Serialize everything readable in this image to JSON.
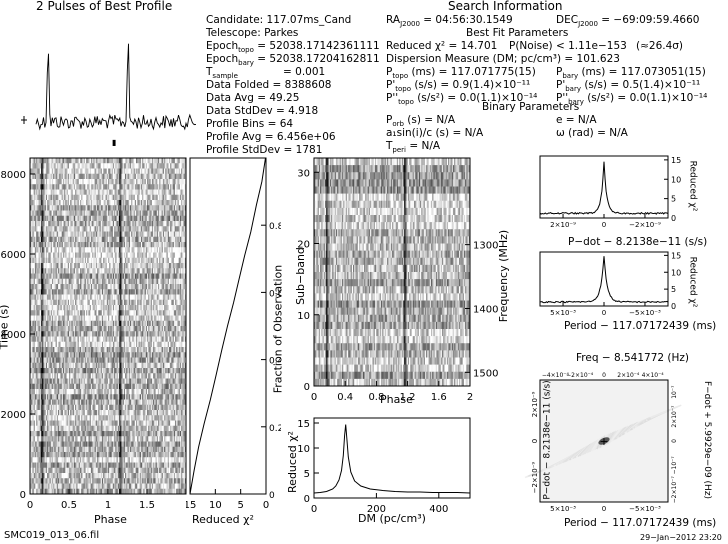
{
  "profile_title": "2 Pulses of Best Profile",
  "info": {
    "candidate": "Candidate:  117.07ms_Cand",
    "telescope": "Telescope:  Parkes",
    "epoch_topo_label": "Epoch",
    "epoch_topo_sub": "topo",
    "epoch_topo_val": " = 52038.17142361111",
    "epoch_bary_label": "Epoch",
    "epoch_bary_sub": "bary",
    "epoch_bary_val": " = 52038.17204162811",
    "tsample_label": "T",
    "tsample_sub": "sample",
    "tsample_val": "= 0.001",
    "data_folded": "Data Folded       = 8388608",
    "data_avg": "Data Avg           = 49.25",
    "data_stddev": "Data StdDev       = 4.918",
    "profile_bins": "Profile Bins       = 64",
    "profile_avg": "Profile Avg        = 6.456e+06",
    "profile_stddev": "Profile StdDev    = 1781"
  },
  "search": {
    "title": "Search Information",
    "ra": "RA",
    "ra_sub": "J2000",
    "ra_val": " = 04:56:30.1549",
    "dec": "DEC",
    "dec_sub": "J2000",
    "dec_val": " = −69:09:59.4660",
    "best_fit": "Best Fit Parameters",
    "reduced_chi": "Reduced χ² = 14.701",
    "pnoise": "P(Noise) < 1.11e−153",
    "sigma": "(≈26.4σ)",
    "dm": "Dispersion Measure (DM; pc/cm³) = 101.623",
    "p_topo": "P",
    "p_topo_sub": "topo",
    "p_topo_val": " (ms)     = 117.071775(15)",
    "pd_topo": "P'",
    "pd_topo_sub": "topo",
    "pd_topo_val": " (s/s)   = 0.9(1.4)×10⁻¹¹",
    "pdd_topo": "P''",
    "pdd_topo_sub": "topo",
    "pdd_topo_val": " (s/s²) = 0.0(1.1)×10⁻¹⁴",
    "p_bary": "P",
    "p_bary_sub": "bary",
    "p_bary_val": " (ms)     = 117.073051(15)",
    "pd_bary": "P'",
    "pd_bary_sub": "bary",
    "pd_bary_val": " (s/s)   = 0.5(1.4)×10⁻¹¹",
    "pdd_bary": "P''",
    "pdd_bary_sub": "bary",
    "pdd_bary_val": " (s/s²) = 0.0(1.1)×10⁻¹⁴",
    "binary": "Binary Parameters",
    "porb": "P",
    "porb_sub": "orb",
    "porb_val": " (s) = N/A",
    "asini": "a₁sin(i)/c (s) = N/A",
    "tperi": "T",
    "tperi_sub": "peri",
    "tperi_val": " = N/A",
    "ecc": "e = N/A",
    "omega": "ω (rad) = N/A"
  },
  "footer": {
    "filename": "SMC019_013_06.fil",
    "timestamp": "29−Jan−2012 23:20"
  },
  "chart_data": [
    {
      "type": "line",
      "name": "pulse-profile",
      "title": "2 Pulses of Best Profile",
      "xlim": [
        0,
        2
      ],
      "peaks_at_phase": [
        0.15,
        1.15
      ],
      "bins": 64
    },
    {
      "type": "heatmap",
      "name": "time-vs-phase",
      "xlabel": "Phase",
      "ylabel": "Time (s)",
      "xlim": [
        0,
        2
      ],
      "ylim": [
        0,
        8400
      ],
      "x_ticks": [
        "0",
        "0.5",
        "1",
        "1.5"
      ],
      "y_ticks": [
        "0",
        "2000",
        "4000",
        "6000",
        "8000"
      ],
      "pulse_phase": [
        0.15,
        1.15
      ]
    },
    {
      "type": "line",
      "name": "reduced-chi2-vs-time",
      "xlabel": "Reduced χ²",
      "ylabel": "Fraction of Observation",
      "xlim": [
        15,
        0
      ],
      "ylim": [
        0,
        1
      ],
      "x_ticks": [
        "15",
        "10",
        "5",
        "0"
      ],
      "y_ticks": [
        "0",
        "0.2",
        "0.4",
        "0.6",
        "0.8"
      ],
      "x": [
        15,
        14.2,
        13.3,
        12.2,
        11.0,
        9.9,
        8.7,
        7.6,
        6.4,
        5.3,
        4.2,
        3.0,
        1.9,
        0.8,
        0.1
      ],
      "y": [
        0.0,
        0.07,
        0.14,
        0.21,
        0.28,
        0.35,
        0.43,
        0.5,
        0.57,
        0.64,
        0.71,
        0.78,
        0.86,
        0.93,
        1.0
      ]
    },
    {
      "type": "heatmap",
      "name": "subband-vs-phase",
      "xlabel": "Phase",
      "ylabel": "Sub−band",
      "y2label": "Frequency (MHz)",
      "xlim": [
        0,
        2
      ],
      "ylim": [
        0,
        32
      ],
      "x_ticks": [
        "0",
        "0.4",
        "0.8",
        "1.2",
        "1.6",
        "2"
      ],
      "y_ticks": [
        "0",
        "10",
        "20",
        "30"
      ],
      "y2_ticks": [
        "1300",
        "1400",
        "1500"
      ],
      "pulse_phase": [
        0.16,
        1.16
      ]
    },
    {
      "type": "line",
      "name": "dm-chi2",
      "xlabel": "DM (pc/cm³)",
      "ylabel": "Reduced χ²",
      "xlim": [
        0,
        500
      ],
      "ylim": [
        0,
        16
      ],
      "x_ticks": [
        "0",
        "200",
        "400"
      ],
      "y_ticks": [
        "0",
        "5",
        "10",
        "15"
      ],
      "x": [
        0,
        20,
        40,
        60,
        70,
        80,
        88,
        94,
        98,
        101.6,
        105,
        110,
        118,
        130,
        150,
        180,
        220,
        260,
        300,
        340,
        380,
        420,
        460,
        500
      ],
      "y": [
        1.0,
        1.1,
        1.3,
        1.8,
        2.4,
        3.6,
        5.5,
        8.5,
        12.5,
        14.7,
        12.0,
        8.2,
        5.2,
        3.4,
        2.4,
        1.8,
        1.5,
        1.3,
        1.2,
        1.2,
        1.1,
        1.1,
        1.1,
        1.0
      ]
    },
    {
      "type": "line",
      "name": "pdot-chi2",
      "xlabel": "P−dot − 8.2138e−11 (s/s)",
      "ylabel": "Reduced χ²",
      "x_ticks": [
        "2×10⁻⁹",
        "0",
        "−2×10⁻⁹"
      ],
      "y_ticks": [
        "0",
        "5",
        "10",
        "15"
      ],
      "ylim": [
        0,
        16
      ],
      "peak": 14.7
    },
    {
      "type": "line",
      "name": "period-chi2",
      "xlabel": "Period − 117.07172439 (ms)",
      "ylabel": "Reduced χ²",
      "x_ticks": [
        "5×10⁻³",
        "0",
        "−5×10⁻³"
      ],
      "y_ticks": [
        "0",
        "5",
        "10",
        "15"
      ],
      "ylim": [
        0,
        16
      ],
      "peak": 14.7
    },
    {
      "type": "heatmap",
      "name": "period-pdot-plane",
      "title": "Freq − 8.541772 (Hz)",
      "xlabel": "Period − 117.07172439 (ms)",
      "ylabel": "P−dot − 8.2138e−11 (s/s)",
      "y2label": "F−dot + 5.9929e−09 (Hz)",
      "top_ticks": [
        "−4×10⁻⁴",
        "−2×10⁻⁴",
        "0",
        "2×10⁻⁴",
        "4×10⁻⁴"
      ],
      "bottom_ticks": [
        "5×10⁻³",
        "0",
        "−5×10⁻³"
      ],
      "left_ticks": [
        "2×10⁻⁹",
        "0",
        "−2×10⁻⁹"
      ],
      "right_ticks": [
        "10⁻⁷",
        "2×10⁻⁷",
        "0",
        "−10⁻⁷",
        "−2×10⁻⁷"
      ]
    }
  ]
}
